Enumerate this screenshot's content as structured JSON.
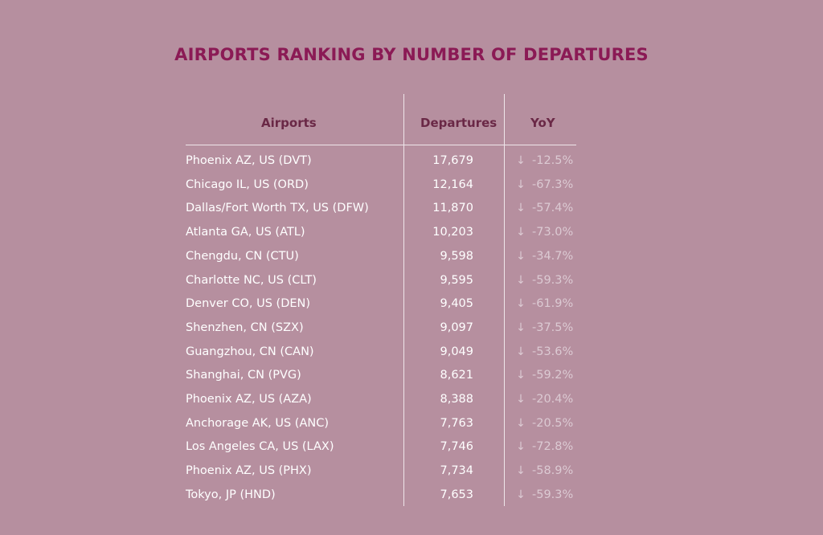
{
  "chart_data": {
    "type": "table",
    "title": "AIRPORTS RANKING BY NUMBER OF DEPARTURES",
    "columns": [
      "Airports",
      "Departures",
      "YoY"
    ],
    "rows": [
      {
        "airport": "Phoenix AZ, US (DVT)",
        "departures": "17,679",
        "yoy": "-12.5%"
      },
      {
        "airport": "Chicago IL, US (ORD)",
        "departures": "12,164",
        "yoy": "-67.3%"
      },
      {
        "airport": "Dallas/Fort Worth TX, US (DFW)",
        "departures": "11,870",
        "yoy": "-57.4%"
      },
      {
        "airport": "Atlanta GA, US (ATL)",
        "departures": "10,203",
        "yoy": "-73.0%"
      },
      {
        "airport": "Chengdu, CN (CTU)",
        "departures": "9,598",
        "yoy": "-34.7%"
      },
      {
        "airport": "Charlotte NC, US (CLT)",
        "departures": "9,595",
        "yoy": "-59.3%"
      },
      {
        "airport": "Denver CO, US (DEN)",
        "departures": "9,405",
        "yoy": "-61.9%"
      },
      {
        "airport": "Shenzhen, CN (SZX)",
        "departures": "9,097",
        "yoy": "-37.5%"
      },
      {
        "airport": "Guangzhou, CN (CAN)",
        "departures": "9,049",
        "yoy": "-53.6%"
      },
      {
        "airport": "Shanghai, CN (PVG)",
        "departures": "8,621",
        "yoy": "-59.2%"
      },
      {
        "airport": "Phoenix AZ, US (AZA)",
        "departures": "8,388",
        "yoy": "-20.4%"
      },
      {
        "airport": "Anchorage AK, US (ANC)",
        "departures": "7,763",
        "yoy": "-20.5%"
      },
      {
        "airport": "Los Angeles CA, US (LAX)",
        "departures": "7,746",
        "yoy": "-72.8%"
      },
      {
        "airport": "Phoenix AZ, US (PHX)",
        "departures": "7,734",
        "yoy": "-58.9%"
      },
      {
        "airport": "Tokyo, JP (HND)",
        "departures": "7,653",
        "yoy": "-59.3%"
      }
    ],
    "trend_icon": "down-arrow-icon",
    "trend_symbol": "↓",
    "colors": {
      "background": "#b68f9f",
      "title": "#8b1a55",
      "header": "#6a2846",
      "text": "#ffffff",
      "yoy": "#dccad3"
    }
  }
}
